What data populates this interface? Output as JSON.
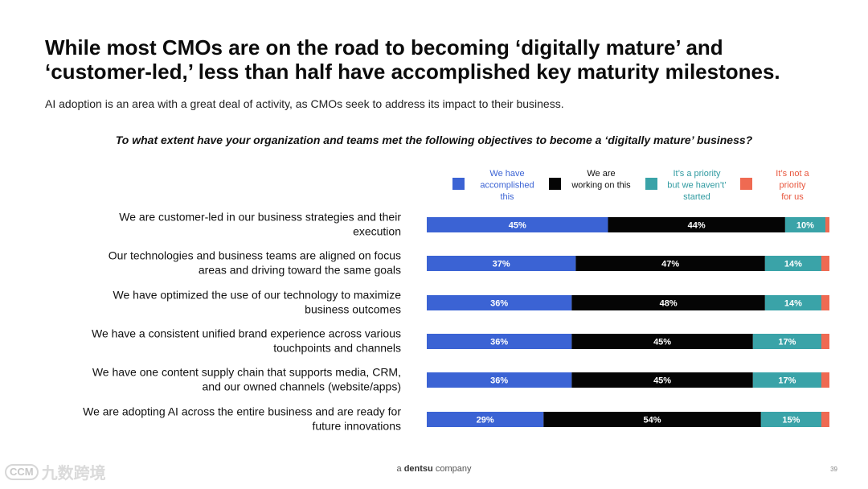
{
  "slide": {
    "title_line1": "While most CMOs are on the road to becoming ‘digitally mature’ and",
    "title_line2": "‘customer-led,’ less than half have accomplished key maturity milestones.",
    "subtitle": "AI adoption is an area with a great deal of activity, as CMOs seek to address its impact to their business.",
    "question": "To what extent have your organization and teams met the following objectives to become a ‘digitally mature’ business?"
  },
  "footer": {
    "prefix": "a",
    "brand": "dentsu",
    "suffix": "company",
    "page_number": "39"
  },
  "watermark": {
    "logo_text": "CCM",
    "text": "九数跨境"
  },
  "colors": {
    "accomplished": "#3b63d4",
    "working": "#050505",
    "priority": "#3aa3a8",
    "not_priority": "#ef6a52"
  },
  "chart_data": {
    "type": "bar",
    "orientation": "horizontal",
    "stacked": true,
    "legend_position": "top-right",
    "xlim": [
      0,
      100
    ],
    "categories": [
      [
        "We are customer-led in our business strategies and their",
        "execution"
      ],
      [
        "Our technologies and business teams are aligned on focus",
        "areas and driving toward the same goals"
      ],
      [
        "We have optimized the use of our technology to maximize",
        "business outcomes"
      ],
      [
        "We have a consistent unified brand experience across various",
        "touchpoints and channels"
      ],
      [
        "We have one content supply chain that supports media, CRM,",
        "and our owned channels (website/apps)"
      ],
      [
        "We are adopting AI across the entire business and are ready for",
        "future innovations"
      ]
    ],
    "series": [
      {
        "name": [
          "We have",
          "accomplished",
          "this"
        ],
        "color": "#3b63d4",
        "text_color": "#3b63d4",
        "label_color": "#ffffff",
        "values": [
          45,
          37,
          36,
          36,
          36,
          29
        ],
        "labels": [
          "45%",
          "37%",
          "36%",
          "36%",
          "36%",
          "29%"
        ]
      },
      {
        "name": [
          "We are",
          "working on this"
        ],
        "color": "#050505",
        "text_color": "#111111",
        "label_color": "#ffffff",
        "values": [
          44,
          47,
          48,
          45,
          45,
          54
        ],
        "labels": [
          "44%",
          "47%",
          "48%",
          "45%",
          "45%",
          "54%"
        ]
      },
      {
        "name": [
          "It’s a priority",
          "but we haven’t’",
          "started"
        ],
        "color": "#3aa3a8",
        "text_color": "#2f9aa0",
        "label_color": "#ffffff",
        "values": [
          10,
          14,
          14,
          17,
          17,
          15
        ],
        "labels": [
          "10%",
          "14%",
          "14%",
          "17%",
          "17%",
          "15%"
        ]
      },
      {
        "name": [
          "It’s not a",
          "priority",
          "for us"
        ],
        "color": "#ef6a52",
        "text_color": "#e8553c",
        "label_color": "#ffffff",
        "values": [
          1,
          2,
          2,
          2,
          2,
          2
        ],
        "labels": [
          "",
          "",
          "",
          "",
          "",
          ""
        ]
      }
    ]
  }
}
